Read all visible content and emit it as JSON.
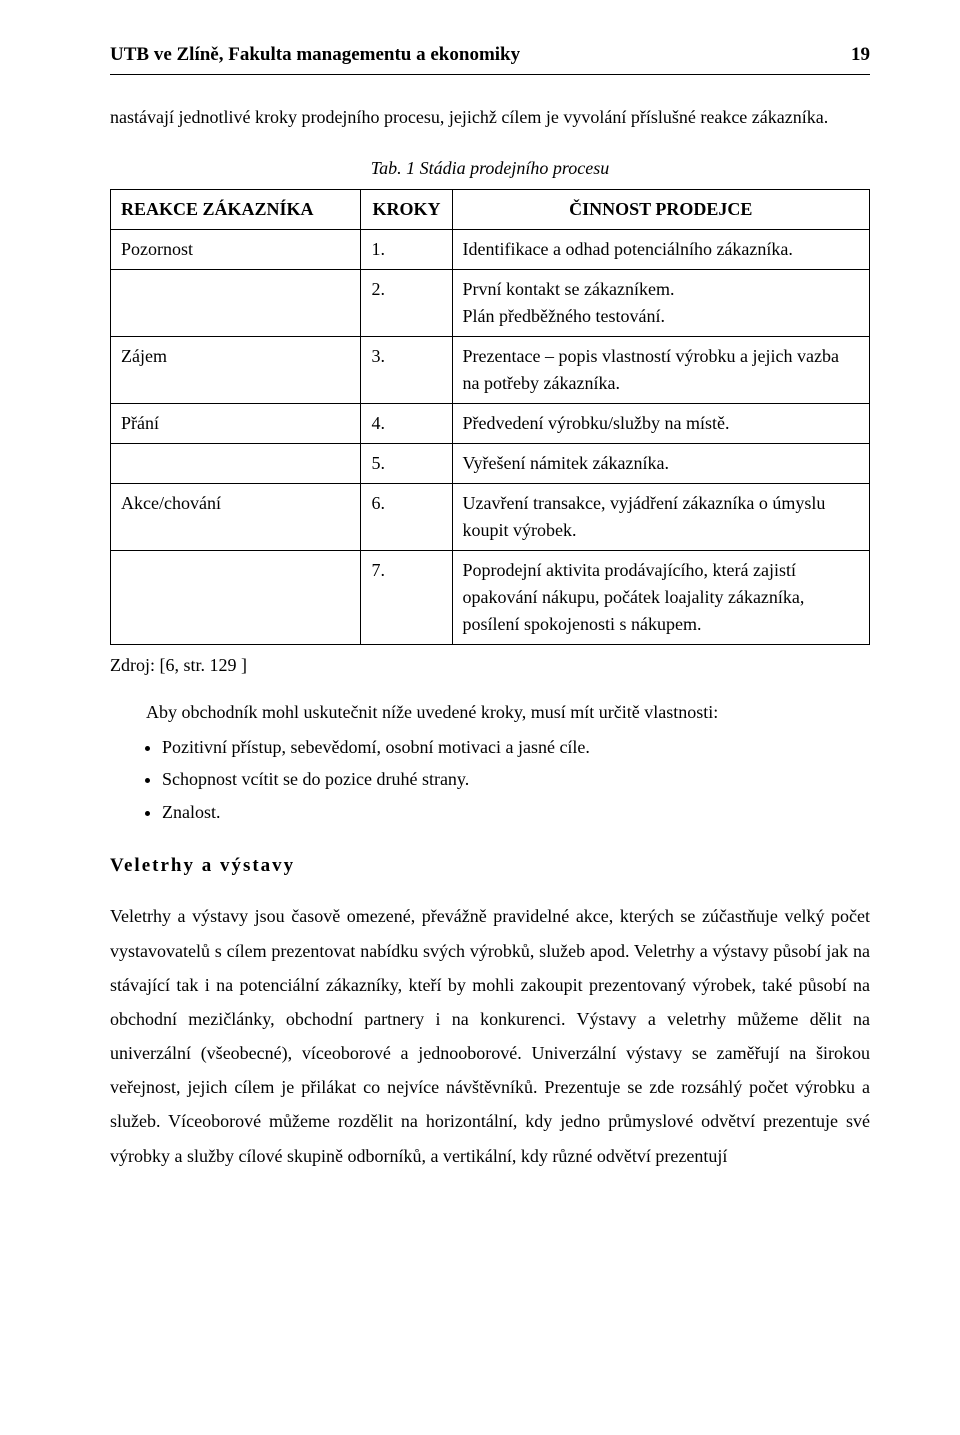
{
  "header": {
    "left": "UTB ve Zlíně, Fakulta managementu a ekonomiky",
    "page_number": "19"
  },
  "intro_paragraph": "nastávají jednotlivé kroky prodejního procesu, jejichž cílem je vyvolání příslušné reakce zákazníka.",
  "table_caption": "Tab. 1 Stádia prodejního procesu",
  "table": {
    "columns": {
      "reaction": "REAKCE ZÁKAZNÍKA",
      "step": "KROKY",
      "activity": "ČINNOST PRODEJCE"
    },
    "rows": [
      {
        "reaction": "Pozornost",
        "step": "1.",
        "activity": "Identifikace a odhad potenciálního zákazníka."
      },
      {
        "reaction": "",
        "step": "2.",
        "activity": "První kontakt se zákazníkem.\nPlán předběžného testování."
      },
      {
        "reaction": "Zájem",
        "step": "3.",
        "activity": "Prezentace – popis vlastností výrobku a jejich vazba na potřeby zákazníka."
      },
      {
        "reaction": "Přání",
        "step": "4.",
        "activity": "Předvedení výrobku/služby na místě."
      },
      {
        "reaction": "",
        "step": "5.",
        "activity": "Vyřešení námitek zákazníka."
      },
      {
        "reaction": "Akce/chování",
        "step": "6.",
        "activity": "Uzavření transakce, vyjádření zákazníka o úmyslu koupit výrobek."
      },
      {
        "reaction": "",
        "step": "7.",
        "activity": "Poprodejní aktivita prodávajícího, která zajistí opakování nákupu, počátek loajality zákazníka, posílení spokojenosti s nákupem."
      }
    ]
  },
  "source": "Zdroj: [6, str. 129 ]",
  "lead_in": "Aby obchodník mohl uskutečnit níže uvedené kroky, musí mít určitě vlastnosti:",
  "bullets": {
    "b1": "Pozitivní přístup, sebevědomí, osobní motivaci a jasné cíle.",
    "b2": "Schopnost vcítit se do pozice druhé strany.",
    "b3": "Znalost."
  },
  "subhead": "Veletrhy a výstavy",
  "body_paragraph": "Veletrhy a výstavy jsou časově omezené, převážně pravidelné akce, kterých se zúčastňuje velký počet vystavovatelů s cílem prezentovat nabídku svých výrobků, služeb apod. Veletrhy a výstavy působí jak na stávající tak i na potenciální zákazníky, kteří by mohli zakoupit prezentovaný výrobek, také působí na obchodní mezičlánky, obchodní partnery i na konkurenci. Výstavy a veletrhy můžeme dělit na univerzální (všeobecné), víceoborové a jednooborové. Univerzální výstavy se zaměřují na širokou veřejnost, jejich cílem je přilákat co nejvíce návštěvníků. Prezentuje se zde rozsáhlý počet výrobku a služeb. Víceoborové můžeme rozdělit na horizontální, kdy jedno průmyslové odvětví prezentuje své výrobky a služby cílové skupině odborníků, a vertikální, kdy různé odvětví prezentují"
}
